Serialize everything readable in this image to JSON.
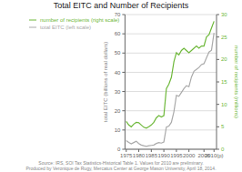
{
  "chart_data": {
    "type": "line",
    "title": "Total EITC and Number of Recipients",
    "ylabel": "total EITC (billions of real dollars)",
    "y2label": "number of recipients (millions)",
    "annotation": "Source: IRS, SOI Tax Statistics-Historical Table 1. Values for 2010 are preliminary.\nProduced by Veronique de Rugy, Mercatus Center at George Mason University, April 18, 2014.",
    "x": [
      1975,
      1976,
      1977,
      1978,
      1979,
      1980,
      1981,
      1982,
      1983,
      1984,
      1985,
      1986,
      1987,
      1988,
      1989,
      1990,
      1991,
      1992,
      1993,
      1994,
      1995,
      1996,
      1997,
      1998,
      1999,
      2000,
      2001,
      2002,
      2003,
      2004,
      2005,
      2006,
      2007,
      2008,
      2009,
      2010
    ],
    "xlim": [
      1974.5,
      2011
    ],
    "xticks": [
      1975,
      1980,
      1985,
      1990,
      1995,
      2000,
      2006,
      {
        "value": 2010,
        "label": "2010(p)"
      }
    ],
    "ylim": [
      0,
      70
    ],
    "yticks": [
      0,
      10,
      20,
      30,
      40,
      50,
      60,
      70
    ],
    "y2lim": [
      0,
      30
    ],
    "y2ticks": [
      0,
      5,
      10,
      15,
      20,
      25,
      30
    ],
    "grid": true,
    "legend": "upper left",
    "series": [
      {
        "name": "total EITC (left scale)",
        "color": "#aaaaaa",
        "values": [
          4.5,
          3.5,
          2.8,
          3.5,
          4.2,
          3.0,
          2.2,
          1.8,
          1.5,
          1.8,
          2.0,
          2.2,
          3.0,
          3.5,
          3.2,
          3.8,
          11.5,
          12.0,
          14.0,
          19.5,
          28.0,
          27.5,
          29.5,
          31.5,
          33.0,
          32.5,
          37.5,
          40.5,
          41.5,
          42.5,
          44.0,
          44.5,
          47.5,
          50.5,
          51.5,
          60.5
        ]
      },
      {
        "name": "number of recipients (right scale)",
        "color": "#6eb83a",
        "axis": "y2",
        "values": [
          6.2,
          5.4,
          5.0,
          5.6,
          6.0,
          5.9,
          5.4,
          4.9,
          4.7,
          5.0,
          5.4,
          6.0,
          7.0,
          7.5,
          7.2,
          7.5,
          13.5,
          14.5,
          16.0,
          19.5,
          21.5,
          21.0,
          22.0,
          22.5,
          22.0,
          21.5,
          22.0,
          22.5,
          23.0,
          22.5,
          23.0,
          23.0,
          25.0,
          25.5,
          27.0,
          28.5
        ]
      }
    ]
  }
}
